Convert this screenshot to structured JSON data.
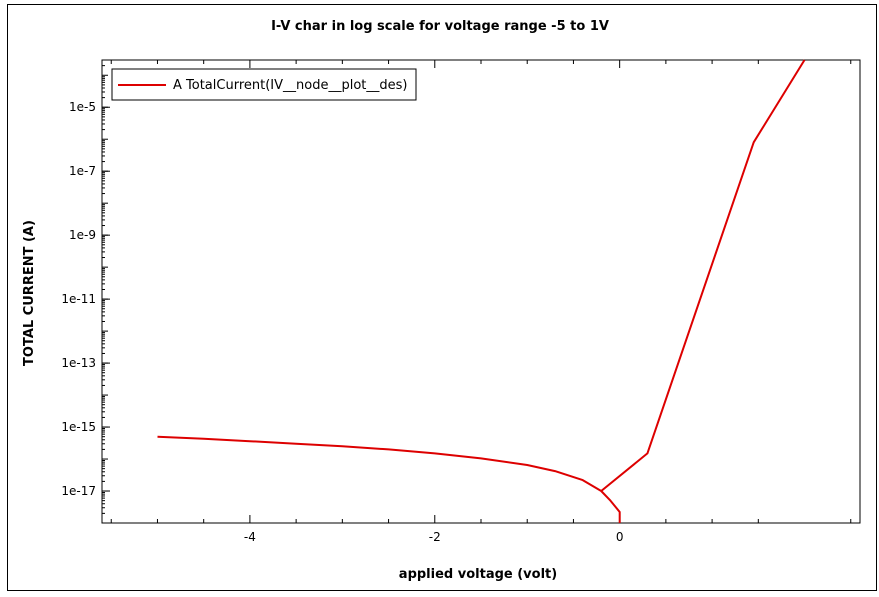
{
  "chart_data": {
    "type": "line",
    "title": "I-V char in log scale for voltage range -5 to 1V",
    "xlabel": "applied voltage (volt)",
    "ylabel": "TOTAL CURRENT (A)",
    "xlim": [
      -5.6,
      2.6
    ],
    "ylim": [
      1e-18,
      0.0003
    ],
    "yscale": "log",
    "x_ticks": [
      -4,
      -2,
      0
    ],
    "x_tick_labels": [
      "-4",
      "-2",
      "0"
    ],
    "y_ticks": [
      1e-17,
      1e-15,
      1e-13,
      1e-11,
      1e-09,
      1e-07,
      1e-05
    ],
    "y_tick_labels": [
      "1e-17",
      "1e-15",
      "1e-13",
      "1e-11",
      "1e-9",
      "1e-7",
      "1e-5"
    ],
    "grid": false,
    "legend_position": "top-left",
    "series": [
      {
        "name": "A TotalCurrent(IV__node__plot__des)",
        "color": "#dd0000",
        "x": [
          -5.0,
          -4.5,
          -4.0,
          -3.5,
          -3.0,
          -2.5,
          -2.0,
          -1.5,
          -1.0,
          -0.7,
          -0.4,
          -0.2,
          -0.1,
          0.0,
          0.0
        ],
        "y": [
          5e-16,
          4.3e-16,
          3.6e-16,
          3e-16,
          2.5e-16,
          2e-16,
          1.5e-16,
          1.05e-16,
          6.5e-17,
          4.2e-17,
          2.2e-17,
          1e-17,
          5e-18,
          2.2e-18,
          1e-18
        ]
      },
      {
        "name": "",
        "color": "#dd0000",
        "x": [
          -0.2,
          0.3,
          1.45,
          2.0
        ],
        "y": [
          1e-17,
          1.5e-16,
          8e-07,
          0.0003
        ]
      }
    ]
  }
}
